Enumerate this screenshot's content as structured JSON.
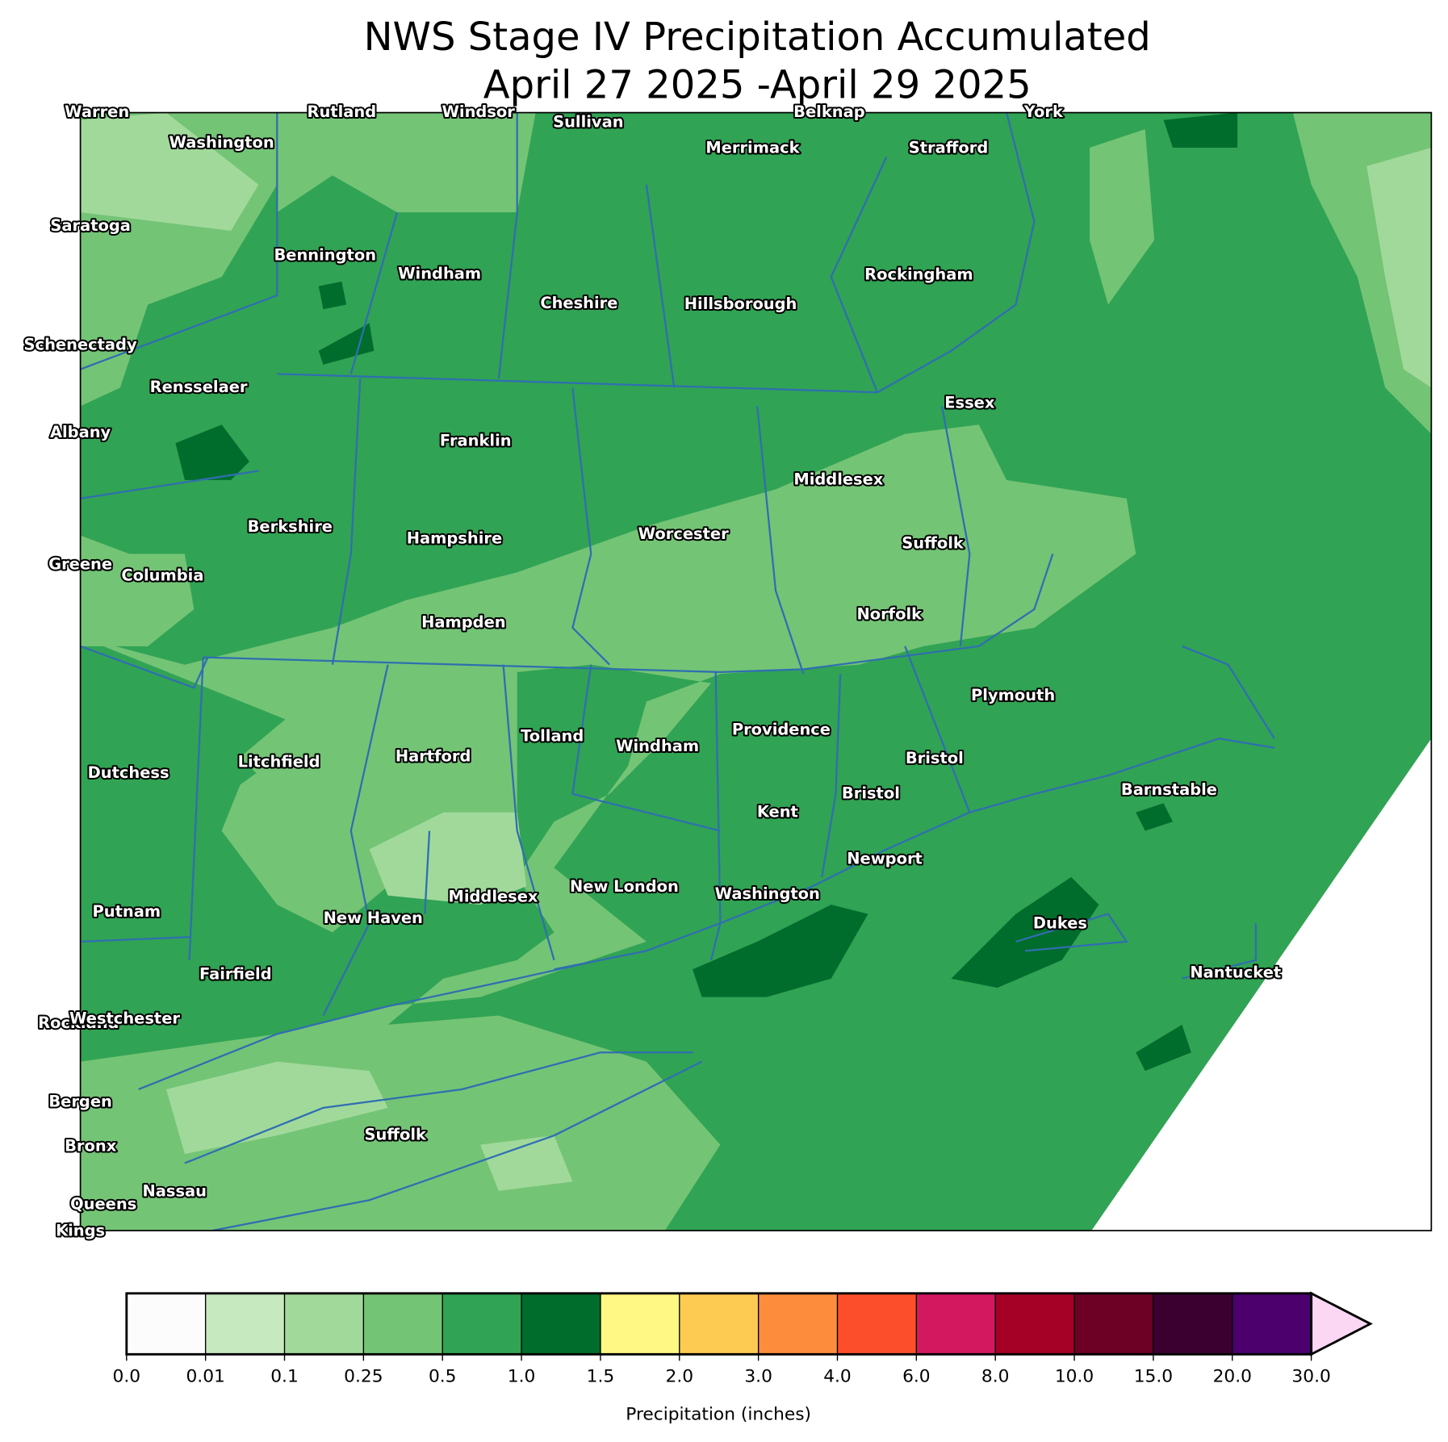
{
  "title": [
    "NWS Stage IV Precipitation Accumulated",
    "April 27 2025 -April 29 2025"
  ],
  "labels": [
    "Warren",
    "Rutland",
    "Windsor",
    "Sullivan",
    "Belknap",
    "York",
    "Washington",
    "Merrimack",
    "Strafford",
    "Saratoga",
    "Bennington",
    "Windham",
    "Rockingham",
    "Cheshire",
    "Hillsborough",
    "Schenectady",
    "Rensselaer",
    "Essex",
    "Albany",
    "Franklin",
    "Middlesex",
    "Berkshire",
    "Worcester",
    "Hampshire",
    "Suffolk",
    "Greene",
    "Columbia",
    "Norfolk",
    "Hampden",
    "Plymouth",
    "Providence",
    "Tolland",
    "Windham",
    "Hartford",
    "Bristol",
    "Litchfield",
    "Dutchess",
    "Barnstable",
    "Bristol",
    "Kent",
    "Newport",
    "New London",
    "Washington",
    "Middlesex",
    "Putnam",
    "New Haven",
    "Dukes",
    "Fairfield",
    "Nantucket",
    "Rockland",
    "Westchester",
    "Bergen",
    "Suffolk",
    "Bronx",
    "Nassau",
    "Queens",
    "Kings"
  ],
  "colorbar": {
    "label": "Precipitation (inches)",
    "ticks": [
      {
        "value": 0,
        "label": "0.0"
      },
      0.01,
      0.1,
      0.25,
      0.5,
      {
        "value": 1,
        "label": "1.0"
      },
      1.5,
      {
        "value": 2,
        "label": "2.0"
      },
      {
        "value": 3,
        "label": "3.0"
      },
      {
        "value": 4,
        "label": "4.0"
      },
      {
        "value": 6,
        "label": "6.0"
      },
      {
        "value": 8,
        "label": "8.0"
      },
      {
        "value": 10,
        "label": "10.0"
      },
      {
        "value": 15,
        "label": "15.0"
      },
      {
        "value": 20,
        "label": "20.0"
      },
      {
        "value": 30,
        "label": "30.0"
      }
    ],
    "colors": [
      "#fcfcfc",
      "#c7e9c0",
      "#a1d99b",
      "#74c476",
      "#31a354",
      "#006d2c",
      "#fff884",
      "#fecb52",
      "#fd8d3c",
      "#fc4e2a",
      "#d4185f",
      "#a50026",
      "#6c0025",
      "#3c0030",
      "#4b006e"
    ],
    "extend_color": "#fcd7f4"
  }
}
